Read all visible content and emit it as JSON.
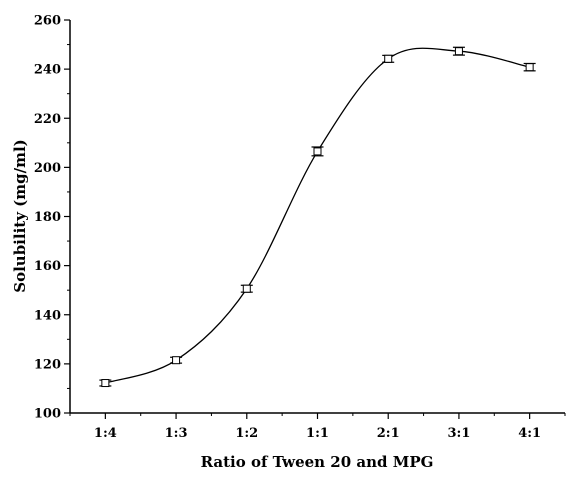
{
  "chart_data": {
    "type": "line",
    "title": "",
    "xlabel": "Ratio of Tween 20 and MPG",
    "ylabel": "Solubility (mg/ml)",
    "categories": [
      "1:4",
      "1:3",
      "1:2",
      "1:1",
      "2:1",
      "3:1",
      "4:1"
    ],
    "series": [
      {
        "values": [
          112.2,
          121.5,
          150.6,
          206.5,
          244.2,
          247.3,
          240.8
        ],
        "error": [
          1.2,
          1.2,
          1.4,
          1.8,
          1.4,
          1.6,
          1.5
        ]
      }
    ],
    "ylim": [
      100,
      260
    ],
    "yticks": [
      100,
      120,
      140,
      160,
      180,
      200,
      220,
      240,
      260
    ],
    "grid": false,
    "legend": "none",
    "line_style": "smooth spline through means with error bars and open square markers",
    "colors": {
      "line": "#000000",
      "marker_fill": "#ffffff"
    }
  }
}
